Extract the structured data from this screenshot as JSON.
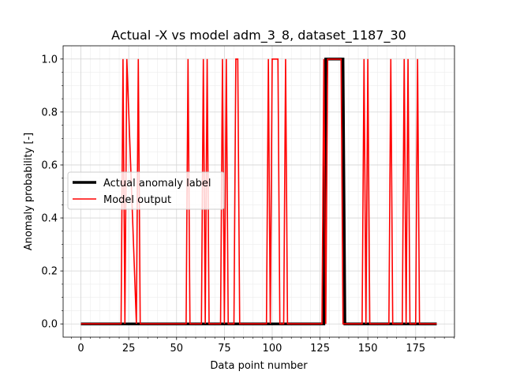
{
  "chart_data": {
    "type": "line",
    "title": "Actual -X vs model adm_3_8, dataset_1187_30",
    "xlabel": "Data point number",
    "ylabel": "Anomaly probability [-]",
    "xlim": [
      -9.3,
      195.3
    ],
    "ylim": [
      -0.05,
      1.05
    ],
    "xticks": [
      0,
      25,
      50,
      75,
      100,
      125,
      150,
      175
    ],
    "yticks": [
      0.0,
      0.2,
      0.4,
      0.6,
      0.8,
      1.0
    ],
    "xtick_labels": [
      "0",
      "25",
      "50",
      "75",
      "100",
      "125",
      "150",
      "175"
    ],
    "ytick_labels": [
      "0.0",
      "0.2",
      "0.4",
      "0.6",
      "0.8",
      "1.0"
    ],
    "grid": true,
    "minor_grid": true,
    "legend_location": "center-left",
    "series": [
      {
        "name": "Actual anomaly label",
        "color": "#000000",
        "width": "thick",
        "x": [
          0,
          127,
          128,
          137,
          138,
          186
        ],
        "y": [
          0,
          0,
          1,
          1,
          0,
          0
        ]
      },
      {
        "name": "Model output",
        "color": "#ff0000",
        "width": "thin",
        "x": [
          0,
          21,
          22,
          23,
          24,
          29,
          30,
          31,
          55,
          56,
          57,
          63,
          64,
          65,
          66,
          67,
          73,
          74,
          75,
          76,
          77,
          80,
          81,
          82,
          83,
          97,
          98,
          99,
          100,
          103,
          104,
          106,
          107,
          108,
          109,
          126,
          127,
          128,
          129,
          136,
          137,
          138,
          147,
          148,
          149,
          150,
          151,
          152,
          161,
          162,
          163,
          168,
          169,
          170,
          171,
          172,
          173,
          175,
          176,
          177,
          186
        ],
        "y": [
          0,
          0,
          1,
          0,
          1,
          0,
          1,
          0,
          0,
          1,
          0,
          0,
          1,
          0,
          1,
          0,
          0,
          1,
          0,
          1,
          0,
          0,
          1,
          1,
          0,
          0,
          1,
          0,
          1,
          1,
          0,
          0,
          1,
          0,
          0,
          0,
          1,
          0,
          1,
          1,
          0,
          0,
          0,
          1,
          0,
          1,
          0,
          0,
          0,
          1,
          0,
          0,
          1,
          0,
          1,
          0,
          0,
          0,
          1,
          0,
          0
        ]
      }
    ]
  }
}
